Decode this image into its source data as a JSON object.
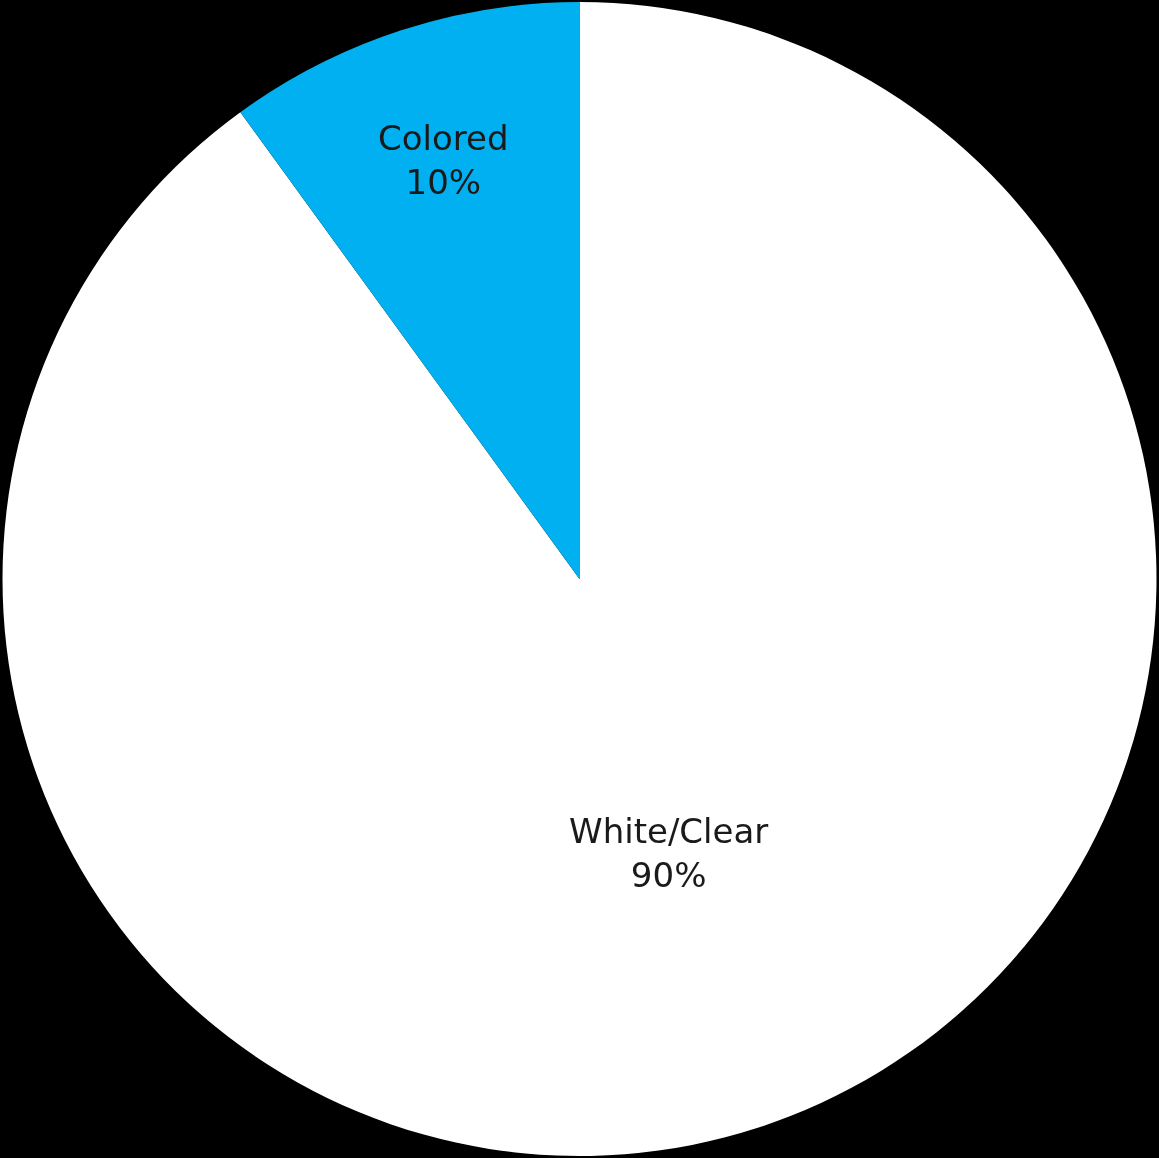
{
  "chart_data": {
    "type": "pie",
    "categories": [
      "White/Clear",
      "Colored"
    ],
    "values": [
      90,
      10
    ],
    "colors": [
      "#ffffff",
      "#00b0f0"
    ],
    "value_labels": [
      "90%",
      "10%"
    ]
  }
}
